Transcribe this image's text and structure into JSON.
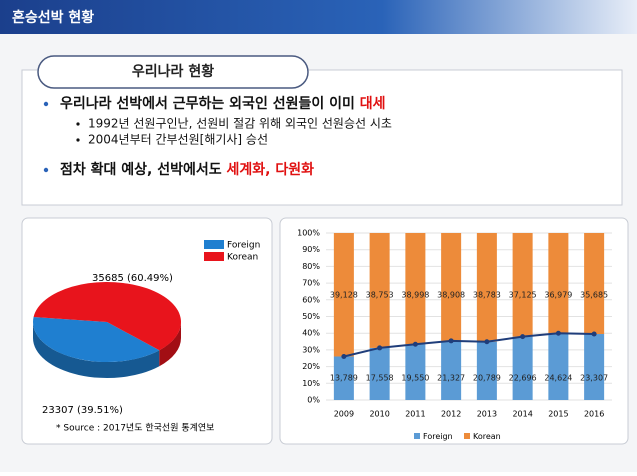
{
  "header": {
    "title": "혼승선박 현황"
  },
  "section": {
    "title": "우리나라 현황"
  },
  "bullets": [
    {
      "text": "우리나라 선박에서 근무하는 외국인 선원들이 이미 ",
      "highlight": "대세",
      "sub": [
        "1992년 선원구인난, 선원비 절감 위해 외국인 선원승선 시초",
        "2004년부터 간부선원[해기사] 승선"
      ]
    },
    {
      "text": "점차 확대 예상, 선박에서도 ",
      "highlight": "세계화, 다원화",
      "sub": []
    }
  ],
  "chart_data": [
    {
      "type": "pie",
      "categories": [
        "Foreign",
        "Korean"
      ],
      "values": [
        23307,
        35685
      ],
      "value_labels": [
        "23307 (39.51%)",
        "35685 (60.49%)"
      ],
      "colors": [
        "#1f7fd0",
        "#e8141c"
      ],
      "source": "* Source : 2017년도 한국선원 통계연보",
      "legend": "upper right"
    },
    {
      "type": "bar",
      "stacking": "percent",
      "categories": [
        "2009",
        "2010",
        "2011",
        "2012",
        "2013",
        "2014",
        "2015",
        "2016"
      ],
      "series": [
        {
          "name": "Foreign",
          "color": "#5b9bd5",
          "values": [
            13789,
            17558,
            19550,
            21327,
            20789,
            22696,
            24624,
            23307
          ],
          "value_labels": [
            "13,789",
            "17,558",
            "19,550",
            "21,327",
            "20,789",
            "22,696",
            "24,624",
            "23,307"
          ]
        },
        {
          "name": "Korean",
          "color": "#ed8b3a",
          "values": [
            39128,
            38753,
            38998,
            38908,
            38783,
            37125,
            36979,
            35685
          ],
          "value_labels": [
            "39,128",
            "38,753",
            "38,998",
            "38,908",
            "38,783",
            "37,125",
            "36,979",
            "35,685"
          ]
        }
      ],
      "line_color": "#1f3d7a",
      "ylim": [
        0,
        100
      ],
      "yticks": [
        {
          "value": 0,
          "label": "0%"
        },
        {
          "value": 10,
          "label": "10%"
        },
        {
          "value": 20,
          "label": "20%"
        },
        {
          "value": 30,
          "label": "30%"
        },
        {
          "value": 40,
          "label": "40%"
        },
        {
          "value": 50,
          "label": "50%"
        },
        {
          "value": 60,
          "label": "60%"
        },
        {
          "value": 70,
          "label": "70%"
        },
        {
          "value": 80,
          "label": "80%"
        },
        {
          "value": 90,
          "label": "90%"
        },
        {
          "value": 100,
          "label": "100%"
        }
      ],
      "legend": "bottom"
    }
  ]
}
